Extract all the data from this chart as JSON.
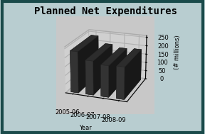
{
  "title": "Planned Net Expenditures",
  "categories": [
    "2005-06",
    "2006-07",
    "2007-08",
    "2008-09"
  ],
  "values": [
    235,
    193,
    178,
    182
  ],
  "bar_color_front": "#3a3a3a",
  "bar_color_top": "#888888",
  "bar_color_side": "#555555",
  "background_color": "#b8cdd0",
  "plot_area_color": "#c8c8c8",
  "plot_wall_color": "#d0d0d0",
  "border_color": "#1a4a4a",
  "xlabel": "Year",
  "ylabel": "(# millions)",
  "ylim": [
    0,
    260
  ],
  "yticks": [
    0,
    50,
    100,
    150,
    200,
    250
  ],
  "title_fontsize": 10,
  "axis_fontsize": 6,
  "tick_fontsize": 6,
  "bar_width": 0.5,
  "bar_depth": 0.3
}
